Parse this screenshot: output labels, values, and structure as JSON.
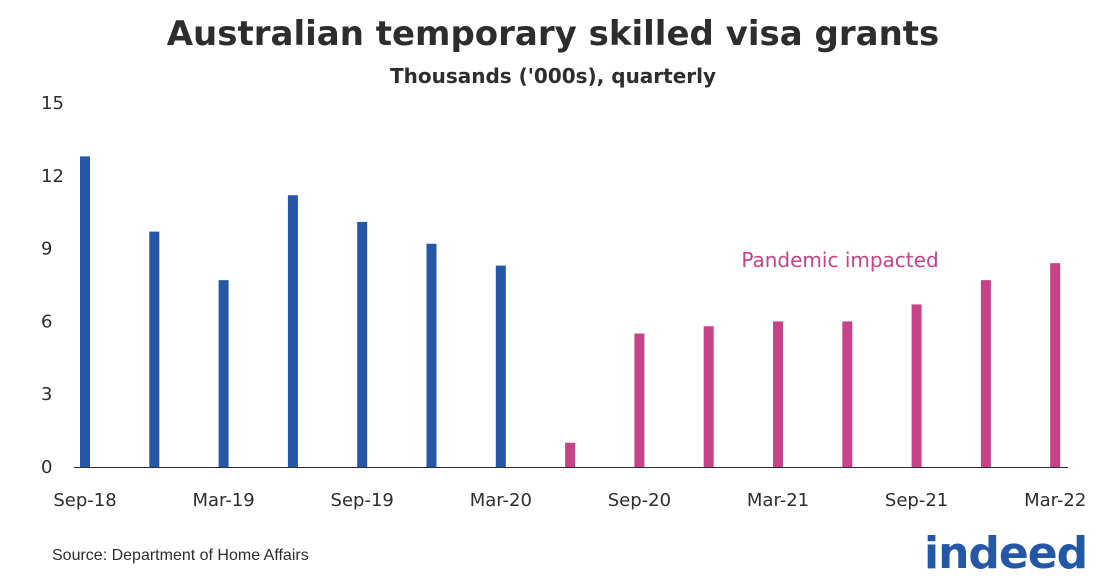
{
  "chart_data": {
    "type": "bar",
    "title": "Australian temporary skilled visa grants",
    "subtitle": "Thousands ('000s), quarterly",
    "categories": [
      "Sep-18",
      "Dec-18",
      "Mar-19",
      "Jun-19",
      "Sep-19",
      "Dec-19",
      "Mar-20",
      "Jun-20",
      "Sep-20",
      "Dec-20",
      "Mar-21",
      "Jun-21",
      "Sep-21",
      "Dec-21",
      "Mar-22"
    ],
    "visible_tick_labels": [
      "Sep-18",
      "Mar-19",
      "Sep-19",
      "Mar-20",
      "Sep-20",
      "Mar-21",
      "Sep-21",
      "Mar-22"
    ],
    "values": [
      12.8,
      9.7,
      7.7,
      11.2,
      10.1,
      9.2,
      8.3,
      1.0,
      5.5,
      5.8,
      6.0,
      6.0,
      6.7,
      7.7,
      8.4
    ],
    "pandemic_from_index": 7,
    "colors": {
      "pre": "#2557a7",
      "pandemic": "#c74289",
      "axis": "#2d2d2d",
      "annotation": "#c74289"
    },
    "annotation": "Pandemic impacted",
    "ylim": [
      0,
      15
    ],
    "yticks": [
      0,
      3,
      6,
      9,
      12,
      15
    ],
    "xlabel": "",
    "ylabel": "",
    "grid": false,
    "legend": "none"
  },
  "source": "Source: Department of Home Affairs",
  "logo": "indeed"
}
